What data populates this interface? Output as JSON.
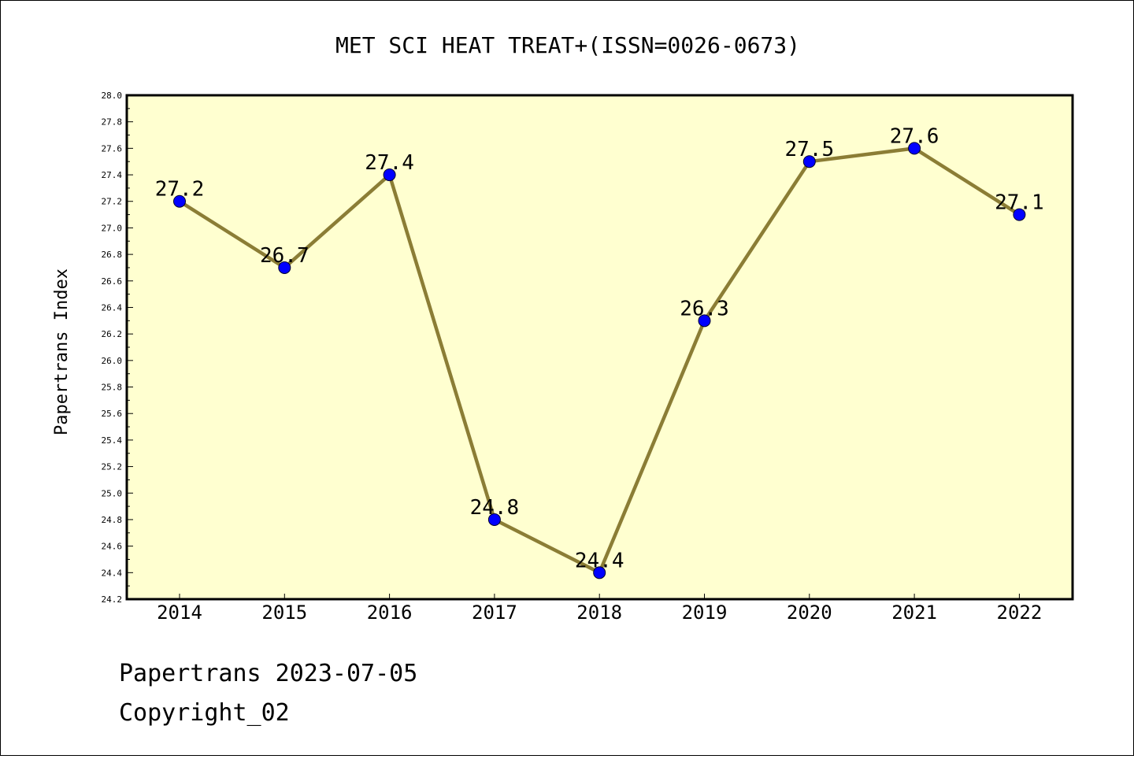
{
  "chart_data": {
    "type": "line",
    "title": "MET SCI HEAT TREAT+(ISSN=0026-0673)",
    "xlabel": "",
    "ylabel": "Papertrans Index",
    "x": [
      "2014",
      "2015",
      "2016",
      "2017",
      "2018",
      "2019",
      "2020",
      "2021",
      "2022"
    ],
    "values": [
      27.2,
      26.7,
      27.4,
      24.8,
      24.4,
      26.3,
      27.5,
      27.6,
      27.1
    ],
    "data_labels": [
      "27.2",
      "26.7",
      "27.4",
      "24.8",
      "24.4",
      "26.3",
      "27.5",
      "27.6",
      "27.1"
    ],
    "ylim": [
      24.2,
      28.0
    ],
    "yticks": [
      "24.2",
      "24.4",
      "24.6",
      "24.8",
      "25.0",
      "25.2",
      "25.4",
      "25.6",
      "25.8",
      "26.0",
      "26.2",
      "26.4",
      "26.6",
      "26.8",
      "27.0",
      "27.2",
      "27.4",
      "27.6",
      "27.8",
      "28.0"
    ],
    "grid": false,
    "colors": {
      "plot_background": "#ffffd0",
      "line": "#8b7d35",
      "marker": "#0000ff"
    }
  },
  "footer": {
    "line1": "Papertrans 2023-07-05",
    "line2": "Copyright_02"
  }
}
